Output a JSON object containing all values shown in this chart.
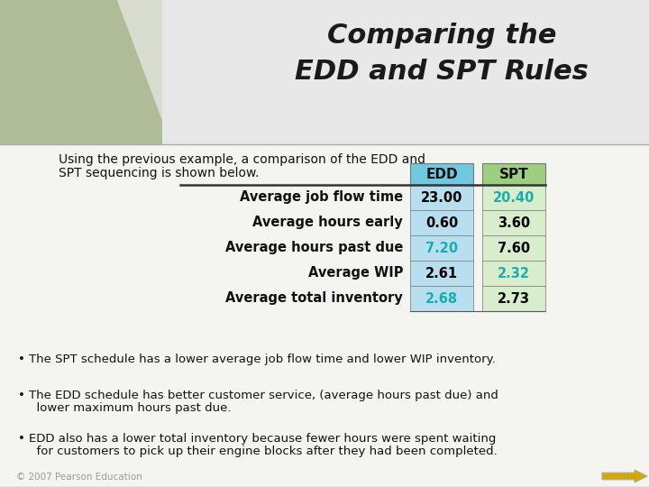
{
  "title_line1": "Comparing the",
  "title_line2": "EDD and SPT Rules",
  "title_fontsize": 22,
  "intro_text1": "Using the previous example, a comparison of the EDD and",
  "intro_text2": "SPT sequencing is shown below.",
  "row_labels": [
    "Average job flow time",
    "Average hours early",
    "Average hours past due",
    "Average WIP",
    "Average total inventory"
  ],
  "col_headers": [
    "EDD",
    "SPT"
  ],
  "edd_values": [
    "23.00",
    "0.60",
    "7.20",
    "2.61",
    "2.68"
  ],
  "spt_values": [
    "20.40",
    "3.60",
    "7.60",
    "2.32",
    "2.73"
  ],
  "edd_colors": [
    "#000000",
    "#000000",
    "#1aadad",
    "#000000",
    "#1aadad"
  ],
  "spt_colors": [
    "#1aadad",
    "#000000",
    "#000000",
    "#1aadad",
    "#000000"
  ],
  "edd_bg": "#b8dff0",
  "spt_bg": "#d8edcc",
  "header_edd_bg": "#70c8e0",
  "header_spt_bg": "#9ecf80",
  "banner_left_color": "#b8c4a8",
  "banner_right_color": "#d8ddd0",
  "body_color": "#f4f4f0",
  "bullet1": "The SPT schedule has a lower average job flow time and lower WIP inventory.",
  "bullet2a": "The EDD schedule has better customer service, (average hours past due) and",
  "bullet2b": "  lower maximum hours past due.",
  "bullet3a": "EDD also has a lower total inventory because fewer hours were spent waiting",
  "bullet3b": "  for customers to pick up their engine blocks after they had been completed.",
  "footer_text": "© 2007 Pearson Education",
  "arrow_color": "#d4a800"
}
